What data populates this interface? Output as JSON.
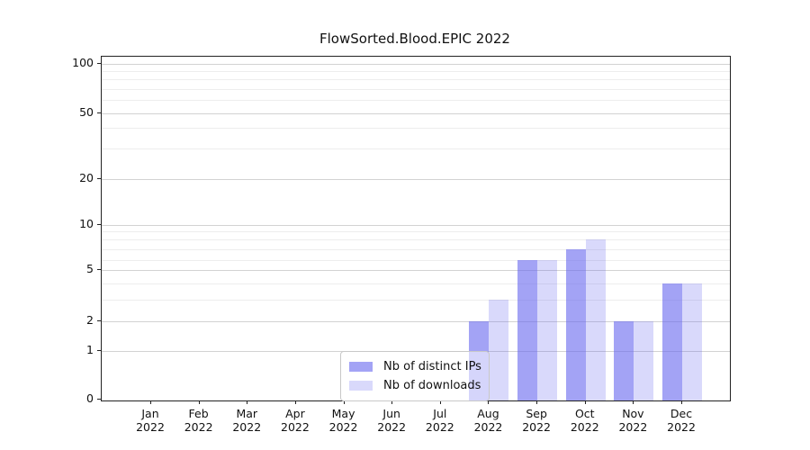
{
  "chart_data": {
    "type": "bar",
    "title": "FlowSorted.Blood.EPIC 2022",
    "categories": [
      "Jan 2022",
      "Feb 2022",
      "Mar 2022",
      "Apr 2022",
      "May 2022",
      "Jun 2022",
      "Jul 2022",
      "Aug 2022",
      "Sep 2022",
      "Oct 2022",
      "Nov 2022",
      "Dec 2022"
    ],
    "series": [
      {
        "name": "Nb of distinct IPs",
        "values": [
          0,
          0,
          0,
          0,
          0,
          0,
          0,
          2,
          6,
          7,
          2,
          4
        ],
        "color": "rgba(102,102,238,0.6)"
      },
      {
        "name": "Nb of downloads",
        "values": [
          0,
          0,
          0,
          0,
          0,
          0,
          0,
          3,
          6,
          8,
          2,
          4
        ],
        "color": "rgba(102,102,238,0.25)"
      }
    ],
    "xlabel": "",
    "ylabel": "",
    "y_axis": {
      "scale": "log-like (0 pinned at baseline)",
      "major_ticks": [
        0,
        1,
        2,
        5,
        10,
        20,
        50,
        100
      ],
      "minor_gridlines": [
        3,
        4,
        6,
        7,
        8,
        9,
        30,
        40,
        60,
        70,
        80,
        90
      ],
      "range": [
        0,
        110
      ]
    },
    "grid": "horizontal major and minor gridlines, drawn through translucent bars",
    "legend": {
      "position": "inside bottom-center",
      "items": [
        "Nb of distinct IPs",
        "Nb of downloads"
      ]
    },
    "colors": {
      "bar_distinct_ips": "rgba(102,102,238,0.6)",
      "bar_downloads": "rgba(102,102,238,0.25)",
      "gridline_major": "#d2d2d2",
      "gridline_minor": "#ededed",
      "spine": "#222222"
    }
  }
}
